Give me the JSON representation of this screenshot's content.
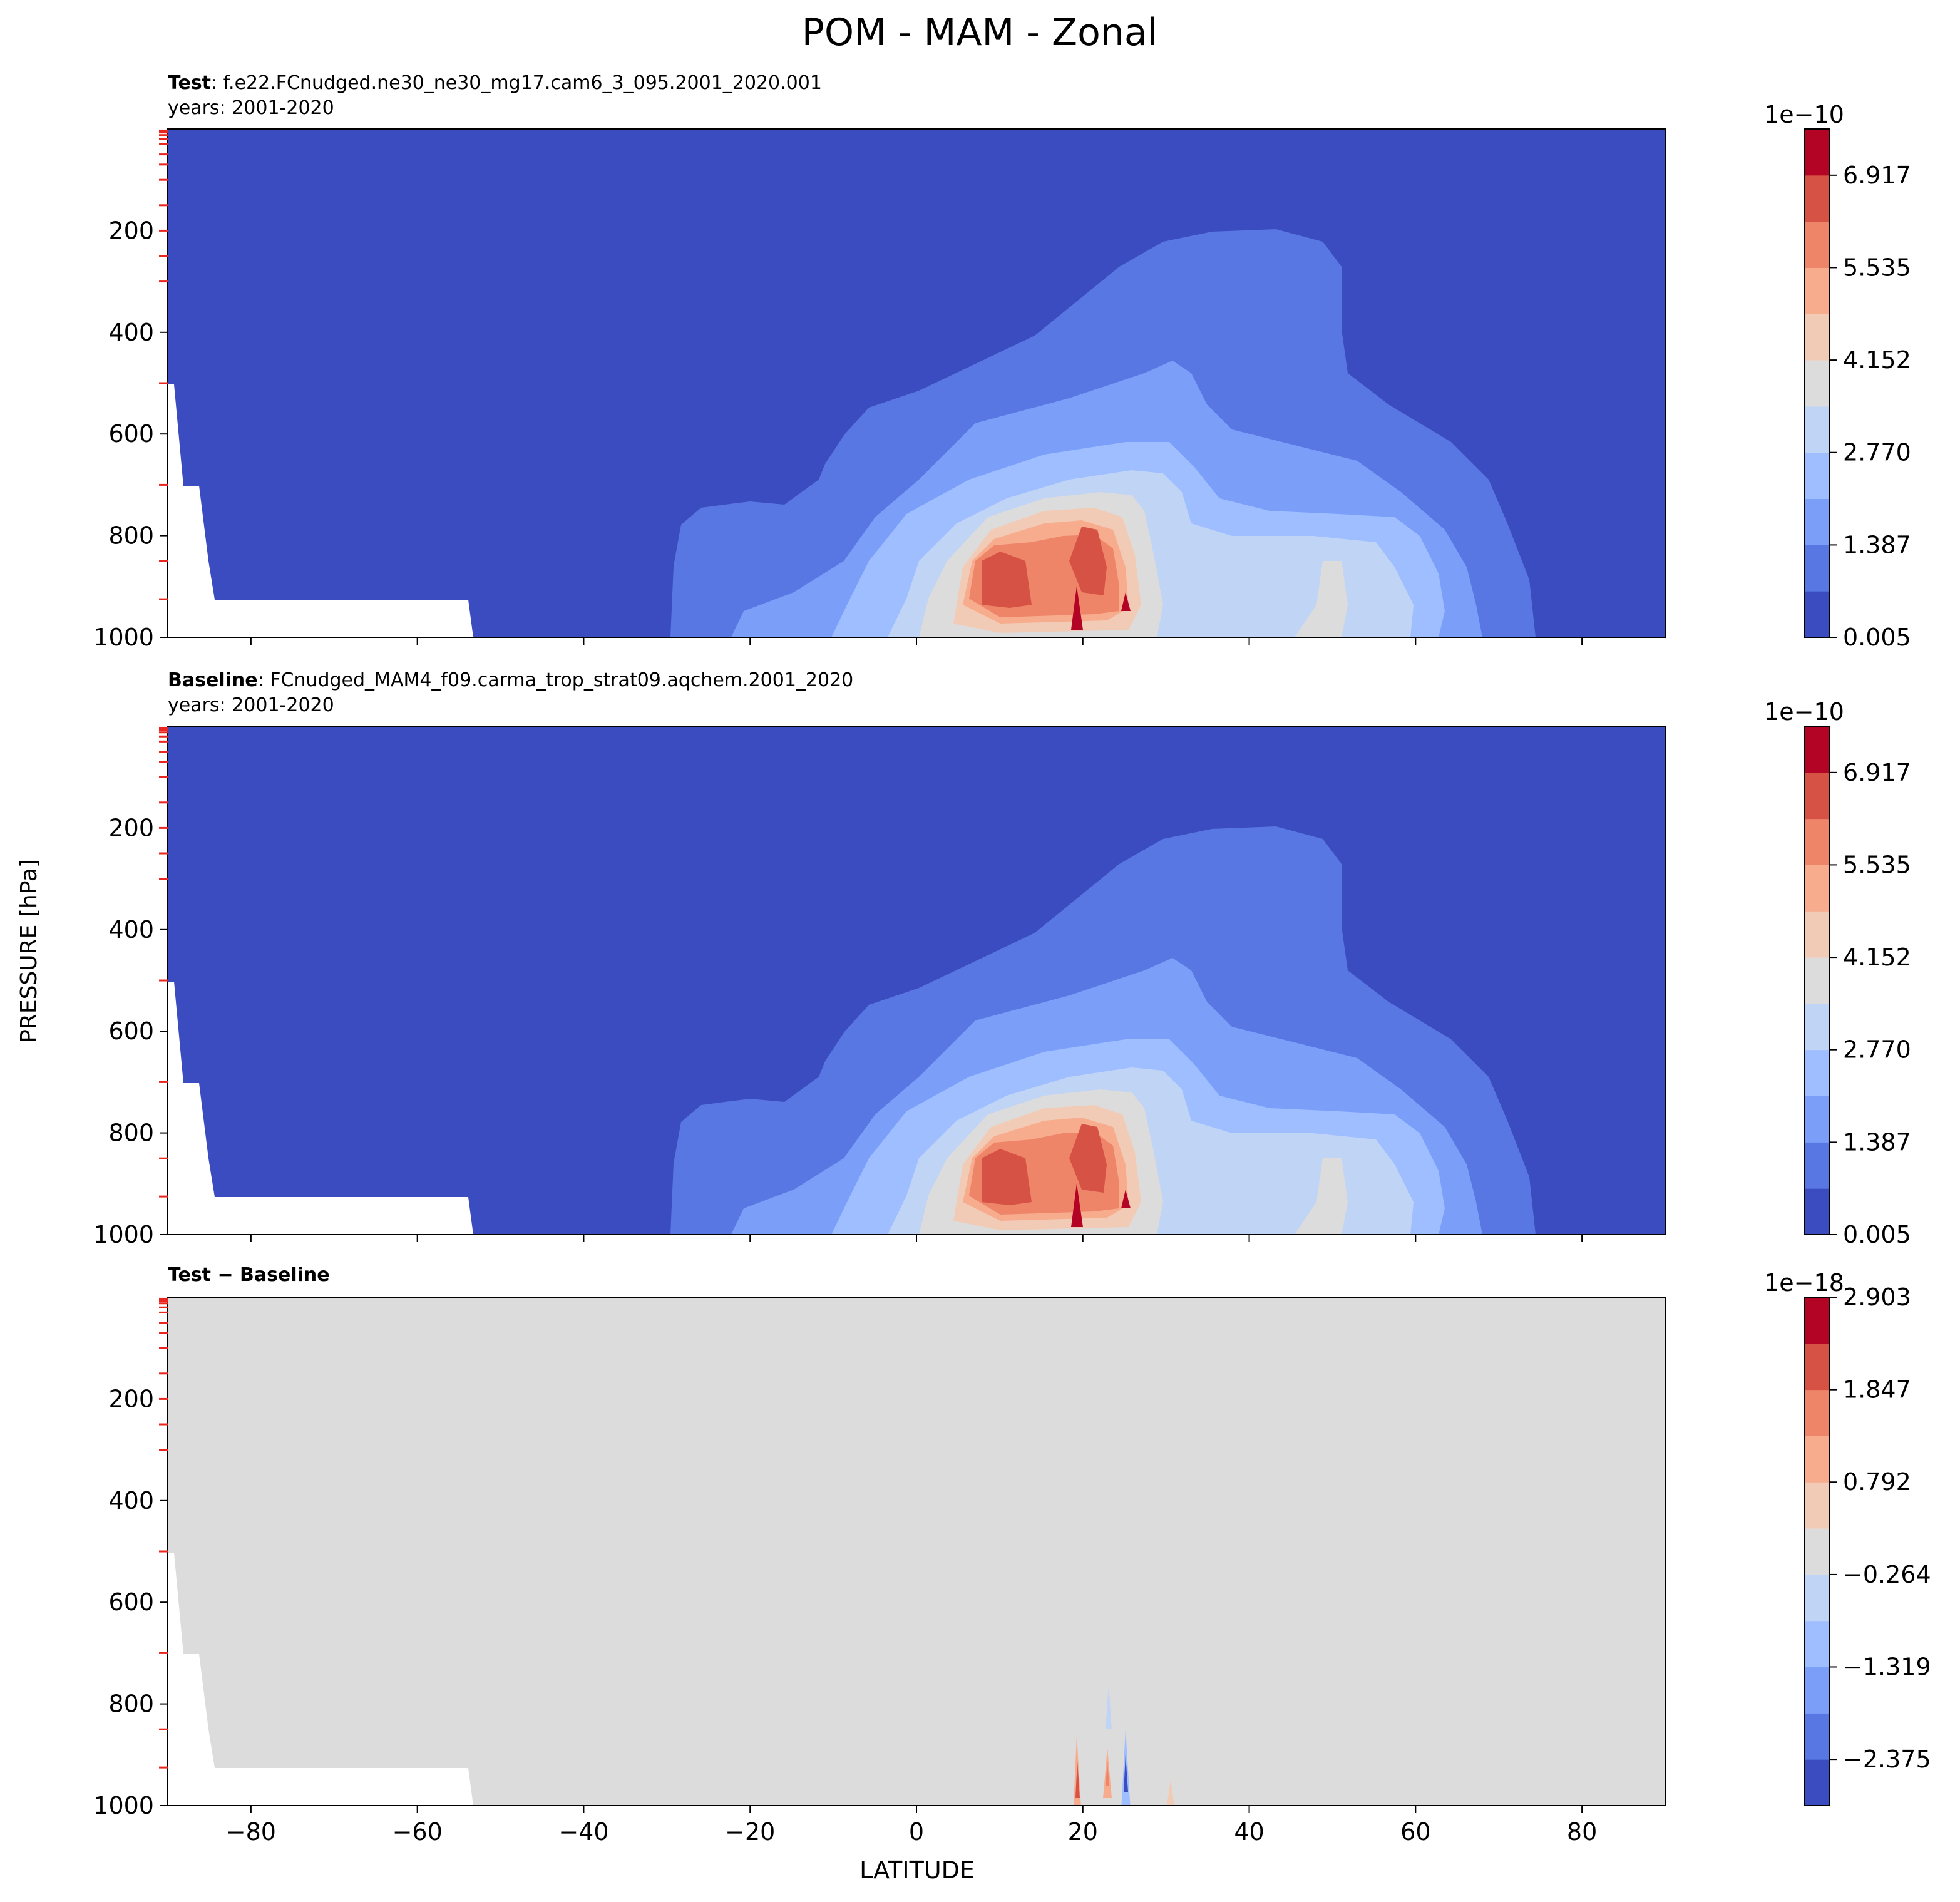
{
  "figure": {
    "title": "POM - MAM - Zonal",
    "ylabel": "PRESSURE [hPa]",
    "xlabel": "LATITUDE"
  },
  "panels": [
    {
      "label_bold": "Test",
      "label_rest": ": f.e22.FCnudged.ne30_ne30_mg17.cam6_3_095.2001_2020.001",
      "years": "years: 2001-2020",
      "colorbar_exponent": "1e−10",
      "colorbar_ticks": [
        "6.917",
        "5.535",
        "4.152",
        "2.770",
        "1.387",
        "0.005"
      ]
    },
    {
      "label_bold": "Baseline",
      "label_rest": ": FCnudged_MAM4_f09.carma_trop_strat09.aqchem.2001_2020",
      "years": "years: 2001-2020",
      "colorbar_exponent": "1e−10",
      "colorbar_ticks": [
        "6.917",
        "5.535",
        "4.152",
        "2.770",
        "1.387",
        "0.005"
      ]
    },
    {
      "label_bold": "Test − Baseline",
      "label_rest": "",
      "years": "",
      "colorbar_exponent": "1e−18",
      "colorbar_ticks": [
        "2.903",
        "1.847",
        "0.792",
        "−0.264",
        "−1.319",
        "−2.375"
      ]
    }
  ],
  "chart_data": {
    "type": "heatmap",
    "description_units": "latitude (degrees) vs pressure (hPa)",
    "x_ticks": [
      "−80",
      "−60",
      "−40",
      "−20",
      "0",
      "20",
      "40",
      "60",
      "80"
    ],
    "x_tick_values": [
      -80,
      -60,
      -40,
      -20,
      0,
      20,
      40,
      60,
      80
    ],
    "y_ticks": [
      "200",
      "400",
      "600",
      "800",
      "1000"
    ],
    "y_tick_values": [
      200,
      400,
      600,
      800,
      1000
    ],
    "xlim": [
      -90,
      90
    ],
    "ylim": [
      0,
      1000
    ],
    "y_inverted": true,
    "model_level_markers_hPa": [
      3,
      5,
      7,
      12,
      20,
      30,
      50,
      70,
      100,
      150,
      200,
      250,
      300,
      500,
      700,
      850,
      925
    ],
    "colormap": "coolwarm",
    "colors": [
      "#3b4cc0",
      "#5977e3",
      "#7b9ff9",
      "#9ebeff",
      "#c0d4f5",
      "#dddcdc",
      "#f2cbb7",
      "#f7ac8e",
      "#ee8468",
      "#d65244",
      "#b40426"
    ],
    "series": [
      {
        "panel": "Test",
        "levels": [
          0.005,
          1.387,
          2.77,
          4.152,
          5.535,
          6.917
        ],
        "level_exponent": -10,
        "features": {
          "background_level": 0.005,
          "max_region_latitude": [
            8,
            26
          ],
          "max_region_pressure": [
            800,
            1000
          ],
          "plume_top_pressure": 220
        }
      },
      {
        "panel": "Baseline",
        "levels": [
          0.005,
          1.387,
          2.77,
          4.152,
          5.535,
          6.917
        ],
        "level_exponent": -10,
        "features": {
          "background_level": 0.005,
          "max_region_latitude": [
            8,
            26
          ],
          "max_region_pressure": [
            800,
            1000
          ],
          "plume_top_pressure": 220
        }
      },
      {
        "panel": "Test − Baseline",
        "levels": [
          -2.375,
          -1.319,
          -0.264,
          0.792,
          1.847,
          2.903
        ],
        "level_exponent": -18,
        "features": {
          "background_level": 0,
          "anomaly_latitudes": [
            19,
            23,
            25,
            31
          ],
          "anomaly_pressure": [
            850,
            1000
          ]
        }
      }
    ]
  }
}
